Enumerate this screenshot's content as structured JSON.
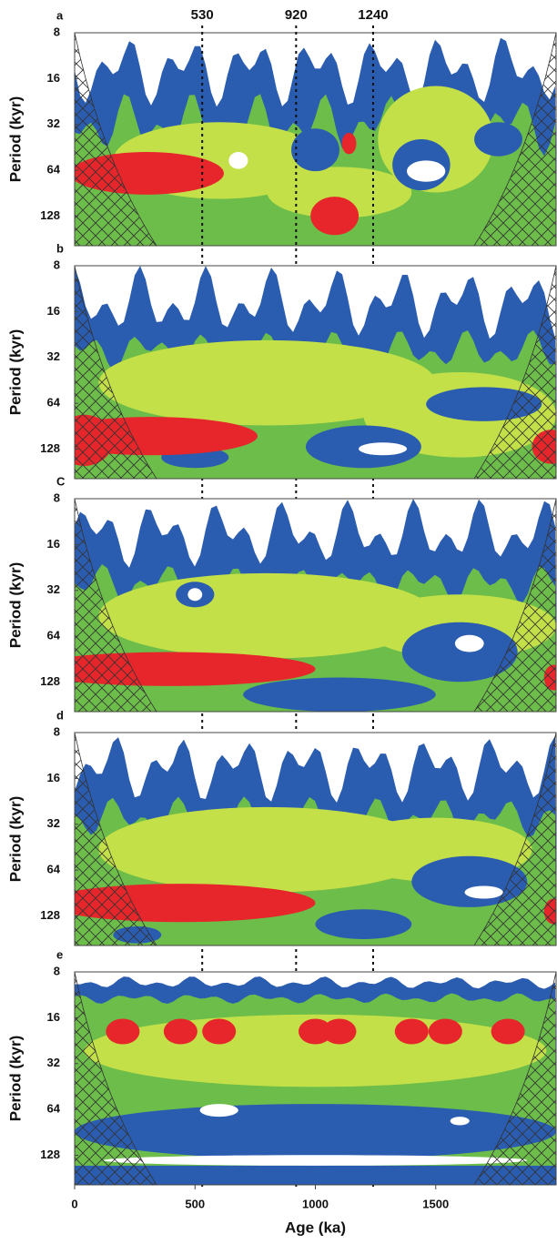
{
  "chart_data": [
    {
      "type": "contour",
      "panel_label": "a",
      "ylabel": "Period (kyr)",
      "y_scale": "log",
      "ylim": [
        8,
        200
      ],
      "yticks": [
        8,
        16,
        32,
        64,
        128
      ],
      "xlim": [
        0,
        2000
      ],
      "vlines": [
        530,
        920,
        1240
      ]
    },
    {
      "type": "contour",
      "panel_label": "b",
      "ylabel": "Period (kyr)",
      "y_scale": "log",
      "ylim": [
        8,
        200
      ],
      "yticks": [
        8,
        16,
        32,
        64,
        128
      ],
      "xlim": [
        0,
        2000
      ]
    },
    {
      "type": "contour",
      "panel_label": "C",
      "ylabel": "Period (kyr)",
      "y_scale": "log",
      "ylim": [
        8,
        200
      ],
      "yticks": [
        8,
        16,
        32,
        64,
        128
      ],
      "xlim": [
        0,
        2000
      ]
    },
    {
      "type": "contour",
      "panel_label": "d",
      "ylabel": "Period (kyr)",
      "y_scale": "log",
      "ylim": [
        8,
        200
      ],
      "yticks": [
        8,
        16,
        32,
        64,
        128
      ],
      "xlim": [
        0,
        2000
      ]
    },
    {
      "type": "contour",
      "panel_label": "e",
      "ylabel": "Period (kyr)",
      "y_scale": "log",
      "ylim": [
        8,
        200
      ],
      "yticks": [
        8,
        16,
        32,
        64,
        128
      ],
      "xlim": [
        0,
        2000
      ],
      "xticks": [
        0,
        500,
        1000,
        1500
      ],
      "xlabel": "Age (ka)"
    }
  ]
}
